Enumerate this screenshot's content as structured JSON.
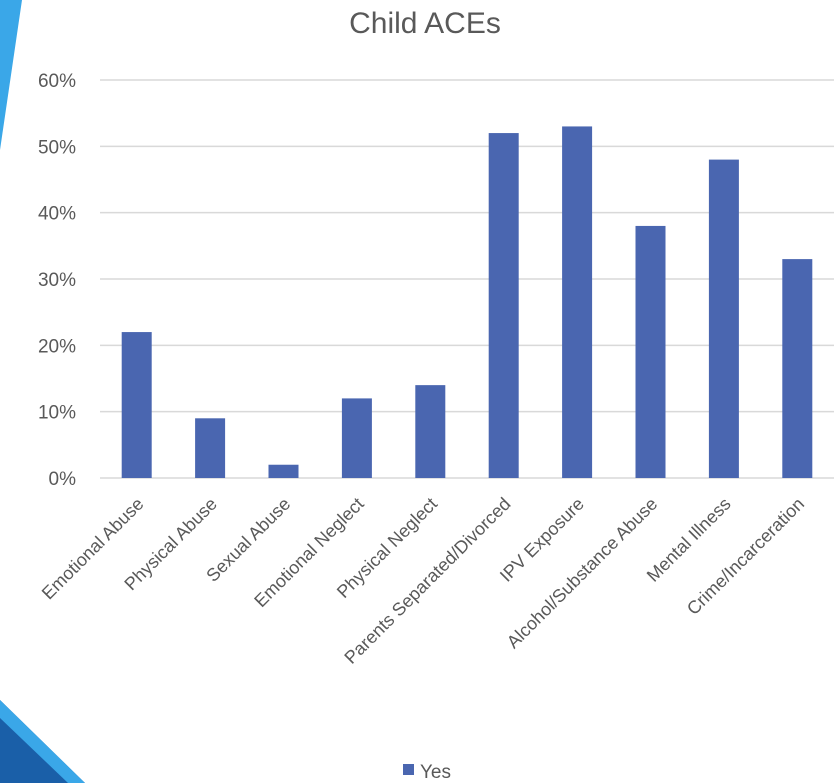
{
  "colors": {
    "bar": "#4a66b0",
    "grid": "#d9d9d9",
    "text": "#595959",
    "accent_light": "#3aa7e8",
    "accent_dark": "#1a5fa8"
  },
  "chart_data": {
    "type": "bar",
    "title": "Child ACEs",
    "categories": [
      "Emotional Abuse",
      "Physical Abuse",
      "Sexual Abuse",
      "Emotional Neglect",
      "Physical Neglect",
      "Parents Separated/Divorced",
      "IPV Exposure",
      "Alcohol/Substance Abuse",
      "Mental Illness",
      "Crime/Incarceration"
    ],
    "series": [
      {
        "name": "Yes",
        "values": [
          22,
          9,
          2,
          12,
          14,
          52,
          53,
          38,
          48,
          33
        ]
      }
    ],
    "ylim": [
      0,
      60
    ],
    "yticks": [
      0,
      10,
      20,
      30,
      40,
      50,
      60
    ],
    "ytick_labels": [
      "0%",
      "10%",
      "20%",
      "30%",
      "40%",
      "50%",
      "60%"
    ],
    "grid": true,
    "legend_position": "bottom"
  }
}
